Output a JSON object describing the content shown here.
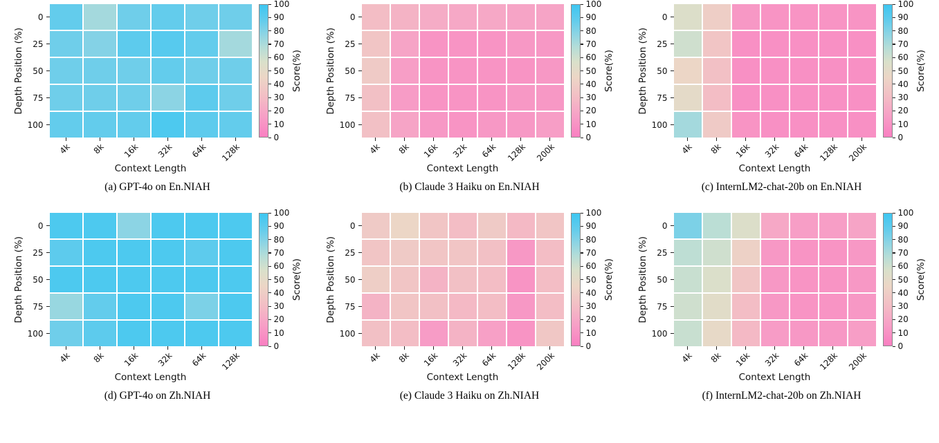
{
  "figure": {
    "background": "#ffffff",
    "colormap_stops": [
      [
        0,
        "#F97FC1"
      ],
      [
        15,
        "#F79EC6"
      ],
      [
        30,
        "#F3BDC5"
      ],
      [
        45,
        "#ECD6C6"
      ],
      [
        57,
        "#D9E0CA"
      ],
      [
        68,
        "#B4DDD8"
      ],
      [
        78,
        "#8CD4E4"
      ],
      [
        88,
        "#63CCEC"
      ],
      [
        100,
        "#3EC6F1"
      ]
    ],
    "colorbar": {
      "label": "Score(%)",
      "tick_min": 0,
      "tick_max": 100,
      "tick_step": 10
    }
  },
  "chart_data": [
    {
      "type": "heatmap",
      "caption": "(a) GPT-4o on En.NIAH",
      "xlabel": "Context Length",
      "ylabel": "Depth Position (%)",
      "colorbar_label": "Score(%)",
      "value_range": [
        0,
        100
      ],
      "x_categories": [
        "4k",
        "8k",
        "16k",
        "32k",
        "64k",
        "128k"
      ],
      "y_categories": [
        "0",
        "25",
        "50",
        "75",
        "100"
      ],
      "values": [
        [
          88,
          72,
          85,
          88,
          85,
          85
        ],
        [
          85,
          80,
          90,
          92,
          88,
          72
        ],
        [
          85,
          85,
          85,
          88,
          85,
          85
        ],
        [
          85,
          85,
          85,
          78,
          90,
          85
        ],
        [
          88,
          88,
          88,
          95,
          90,
          88
        ]
      ]
    },
    {
      "type": "heatmap",
      "caption": "(b) Claude 3 Haiku on En.NIAH",
      "xlabel": "Context Length",
      "ylabel": "Depth Position (%)",
      "colorbar_label": "Score(%)",
      "value_range": [
        0,
        100
      ],
      "x_categories": [
        "4k",
        "8k",
        "16k",
        "32k",
        "64k",
        "128k",
        "200k"
      ],
      "y_categories": [
        "0",
        "25",
        "50",
        "75",
        "100"
      ],
      "values": [
        [
          30,
          25,
          22,
          20,
          20,
          18,
          18
        ],
        [
          35,
          18,
          10,
          10,
          10,
          12,
          12
        ],
        [
          38,
          15,
          10,
          10,
          10,
          10,
          12
        ],
        [
          32,
          14,
          10,
          10,
          10,
          12,
          12
        ],
        [
          32,
          18,
          12,
          10,
          12,
          12,
          15
        ]
      ]
    },
    {
      "type": "heatmap",
      "caption": "(c) InternLM2-chat-20b on En.NIAH",
      "xlabel": "Context Length",
      "ylabel": "Depth Position (%)",
      "colorbar_label": "Score(%)",
      "value_range": [
        0,
        100
      ],
      "x_categories": [
        "4k",
        "8k",
        "16k",
        "32k",
        "64k",
        "128k",
        "200k"
      ],
      "y_categories": [
        "0",
        "25",
        "50",
        "75",
        "100"
      ],
      "values": [
        [
          55,
          40,
          12,
          10,
          10,
          10,
          10
        ],
        [
          60,
          35,
          8,
          8,
          8,
          8,
          8
        ],
        [
          45,
          32,
          8,
          8,
          8,
          8,
          8
        ],
        [
          50,
          30,
          8,
          8,
          8,
          8,
          8
        ],
        [
          72,
          38,
          10,
          8,
          8,
          8,
          8
        ]
      ]
    },
    {
      "type": "heatmap",
      "caption": "(d) GPT-4o on Zh.NIAH",
      "xlabel": "Context Length",
      "ylabel": "Depth Position (%)",
      "colorbar_label": "Score(%)",
      "value_range": [
        0,
        100
      ],
      "x_categories": [
        "4k",
        "8k",
        "16k",
        "32k",
        "64k",
        "128k"
      ],
      "y_categories": [
        "0",
        "25",
        "50",
        "75",
        "100"
      ],
      "values": [
        [
          95,
          95,
          78,
          95,
          95,
          95
        ],
        [
          90,
          95,
          95,
          95,
          90,
          95
        ],
        [
          95,
          95,
          95,
          95,
          95,
          95
        ],
        [
          75,
          88,
          95,
          95,
          82,
          95
        ],
        [
          85,
          90,
          95,
          95,
          95,
          95
        ]
      ]
    },
    {
      "type": "heatmap",
      "caption": "(e) Claude 3 Haiku on Zh.NIAH",
      "xlabel": "Context Length",
      "ylabel": "Depth Position (%)",
      "colorbar_label": "Score(%)",
      "value_range": [
        0,
        100
      ],
      "x_categories": [
        "4k",
        "8k",
        "16k",
        "32k",
        "64k",
        "128k",
        "200k"
      ],
      "y_categories": [
        "0",
        "25",
        "50",
        "75",
        "100"
      ],
      "values": [
        [
          38,
          45,
          35,
          30,
          38,
          28,
          35
        ],
        [
          35,
          38,
          35,
          35,
          32,
          12,
          30
        ],
        [
          40,
          35,
          25,
          32,
          30,
          10,
          30
        ],
        [
          25,
          35,
          32,
          28,
          30,
          12,
          30
        ],
        [
          32,
          30,
          14,
          25,
          16,
          10,
          36
        ]
      ]
    },
    {
      "type": "heatmap",
      "caption": "(f) InternLM2-chat-20b on Zh.NIAH",
      "xlabel": "Context Length",
      "ylabel": "Depth Position (%)",
      "colorbar_label": "Score(%)",
      "value_range": [
        0,
        100
      ],
      "x_categories": [
        "4k",
        "8k",
        "16k",
        "32k",
        "64k",
        "128k",
        "200k"
      ],
      "y_categories": [
        "0",
        "25",
        "50",
        "75",
        "100"
      ],
      "values": [
        [
          82,
          66,
          55,
          20,
          15,
          15,
          18
        ],
        [
          65,
          60,
          42,
          12,
          10,
          10,
          12
        ],
        [
          62,
          56,
          35,
          12,
          10,
          10,
          12
        ],
        [
          60,
          52,
          30,
          12,
          10,
          10,
          12
        ],
        [
          62,
          48,
          28,
          14,
          12,
          12,
          15
        ]
      ]
    }
  ]
}
